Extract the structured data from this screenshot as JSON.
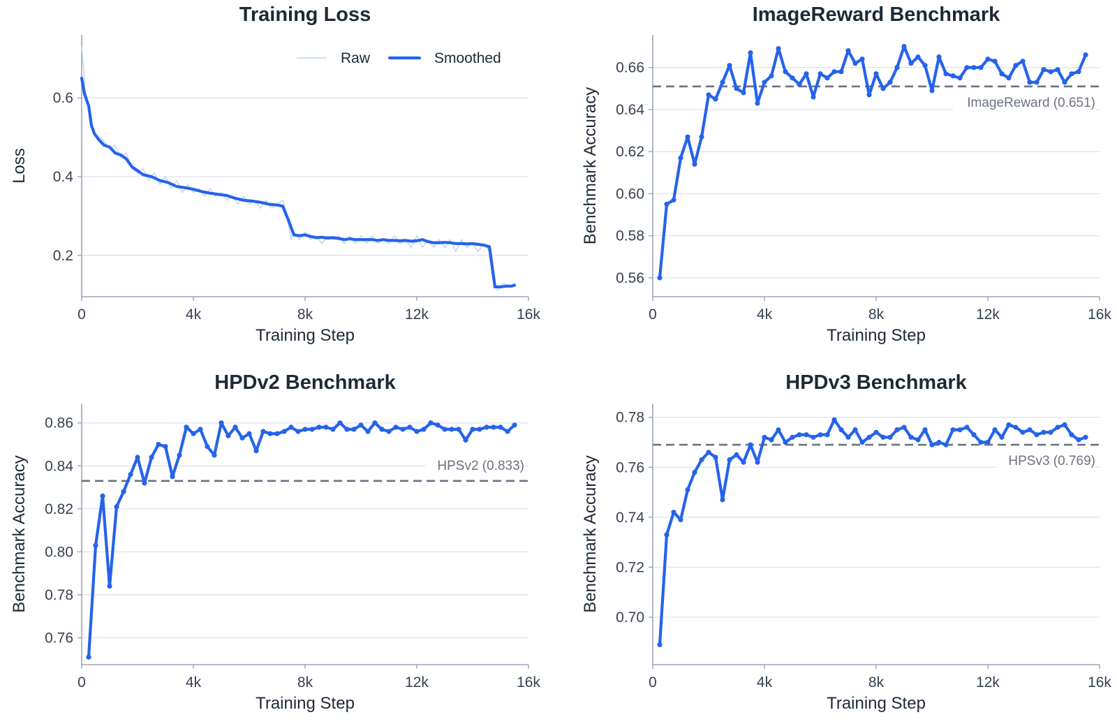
{
  "colors": {
    "series": "#2563eb",
    "raw": "#bcd3f5",
    "grid": "#dfe3ee",
    "axis": "#9aa6b6",
    "reference": "#6b7280"
  },
  "chart_data": [
    {
      "type": "line",
      "title": "Training Loss",
      "xlabel": "Training Step",
      "ylabel": "Loss",
      "xlim": [
        0,
        16000
      ],
      "ylim": [
        0.095,
        0.76
      ],
      "xticks": [
        0,
        4000,
        8000,
        12000,
        16000
      ],
      "xtick_labels": [
        "0",
        "4k",
        "8k",
        "12k",
        "16k"
      ],
      "yticks": [
        0.2,
        0.4,
        0.6
      ],
      "ytick_labels": [
        "0.2",
        "0.4",
        "0.6"
      ],
      "grid": "horizontal",
      "legend": {
        "placement": "top-right",
        "entries": [
          "Raw",
          "Smoothed"
        ]
      },
      "series": [
        {
          "name": "Smoothed",
          "x": [
            0,
            100,
            250,
            350,
            450,
            600,
            800,
            1000,
            1200,
            1400,
            1600,
            1800,
            2000,
            2200,
            2500,
            2800,
            3100,
            3400,
            3700,
            4000,
            4300,
            4600,
            4900,
            5200,
            5500,
            5800,
            6100,
            6400,
            6700,
            7000,
            7200,
            7400,
            7600,
            7800,
            8000,
            8200,
            8400,
            8600,
            8800,
            9000,
            9200,
            9400,
            9600,
            9800,
            10000,
            10200,
            10400,
            10600,
            10800,
            11000,
            11200,
            11400,
            11600,
            11800,
            12000,
            12200,
            12400,
            12600,
            12800,
            13000,
            13200,
            13400,
            13600,
            13800,
            14000,
            14200,
            14400,
            14600,
            14800,
            15000,
            15200,
            15400,
            15500
          ],
          "values": [
            0.65,
            0.61,
            0.58,
            0.53,
            0.51,
            0.495,
            0.48,
            0.475,
            0.46,
            0.455,
            0.445,
            0.425,
            0.415,
            0.405,
            0.4,
            0.39,
            0.385,
            0.375,
            0.372,
            0.368,
            0.362,
            0.358,
            0.355,
            0.352,
            0.345,
            0.34,
            0.338,
            0.335,
            0.33,
            0.328,
            0.325,
            0.29,
            0.252,
            0.25,
            0.252,
            0.248,
            0.245,
            0.246,
            0.244,
            0.245,
            0.243,
            0.24,
            0.242,
            0.24,
            0.24,
            0.24,
            0.24,
            0.238,
            0.24,
            0.238,
            0.238,
            0.237,
            0.238,
            0.236,
            0.237,
            0.24,
            0.235,
            0.232,
            0.232,
            0.233,
            0.232,
            0.23,
            0.23,
            0.229,
            0.23,
            0.228,
            0.226,
            0.222,
            0.12,
            0.12,
            0.122,
            0.122,
            0.124
          ]
        },
        {
          "name": "Raw",
          "x": [
            0,
            60,
            120,
            200,
            280,
            380,
            500,
            650,
            800,
            1000,
            1200,
            1400,
            1600,
            1800,
            2000,
            2200,
            2400,
            2600,
            2800,
            3000,
            3200,
            3400,
            3600,
            3800,
            4000,
            4200,
            4400,
            4600,
            4800,
            5000,
            5200,
            5400,
            5600,
            5800,
            6000,
            6200,
            6400,
            6600,
            6800,
            7000,
            7200,
            7350,
            7500,
            7600,
            7800,
            8000,
            8200,
            8400,
            8600,
            8800,
            9000,
            9200,
            9400,
            9600,
            9800,
            10000,
            10200,
            10400,
            10600,
            10800,
            11000,
            11200,
            11400,
            11600,
            11800,
            12000,
            12200,
            12400,
            12600,
            12800,
            13000,
            13200,
            13400,
            13600,
            13800,
            14000,
            14200,
            14400,
            14600,
            14750,
            14900,
            15100,
            15300,
            15500
          ],
          "values": [
            0.73,
            0.68,
            0.62,
            0.6,
            0.55,
            0.53,
            0.5,
            0.5,
            0.49,
            0.47,
            0.48,
            0.45,
            0.46,
            0.42,
            0.41,
            0.42,
            0.39,
            0.41,
            0.38,
            0.4,
            0.37,
            0.39,
            0.36,
            0.38,
            0.36,
            0.37,
            0.35,
            0.37,
            0.35,
            0.36,
            0.34,
            0.35,
            0.33,
            0.35,
            0.33,
            0.34,
            0.32,
            0.34,
            0.32,
            0.33,
            0.34,
            0.3,
            0.24,
            0.26,
            0.24,
            0.26,
            0.24,
            0.25,
            0.23,
            0.25,
            0.24,
            0.25,
            0.23,
            0.25,
            0.23,
            0.25,
            0.23,
            0.25,
            0.23,
            0.24,
            0.23,
            0.25,
            0.23,
            0.24,
            0.22,
            0.25,
            0.22,
            0.24,
            0.22,
            0.24,
            0.22,
            0.24,
            0.21,
            0.24,
            0.22,
            0.23,
            0.21,
            0.23,
            0.21,
            0.13,
            0.11,
            0.13,
            0.12,
            0.13
          ]
        }
      ]
    },
    {
      "type": "line",
      "title": "ImageReward Benchmark",
      "xlabel": "Training Step",
      "ylabel": "Benchmark Accuracy",
      "xlim": [
        0,
        16000
      ],
      "ylim": [
        0.551,
        0.6755
      ],
      "xticks": [
        0,
        4000,
        8000,
        12000,
        16000
      ],
      "xtick_labels": [
        "0",
        "4k",
        "8k",
        "12k",
        "16k"
      ],
      "yticks": [
        0.56,
        0.58,
        0.6,
        0.62,
        0.64,
        0.66
      ],
      "ytick_labels": [
        "0.56",
        "0.58",
        "0.60",
        "0.62",
        "0.64",
        "0.66"
      ],
      "grid": "horizontal",
      "reference": {
        "label": "ImageReward (0.651)",
        "value": 0.651
      },
      "series": [
        {
          "x": [
            250,
            500,
            750,
            1000,
            1250,
            1500,
            1750,
            2000,
            2250,
            2500,
            2750,
            3000,
            3250,
            3500,
            3750,
            4000,
            4250,
            4500,
            4750,
            5000,
            5250,
            5500,
            5750,
            6000,
            6250,
            6500,
            6750,
            7000,
            7250,
            7500,
            7750,
            8000,
            8250,
            8500,
            8750,
            9000,
            9250,
            9500,
            9750,
            10000,
            10250,
            10500,
            10750,
            11000,
            11250,
            11500,
            11750,
            12000,
            12250,
            12500,
            12750,
            13000,
            13250,
            13500,
            13750,
            14000,
            14250,
            14500,
            14750,
            15000,
            15250,
            15500
          ],
          "values": [
            0.56,
            0.595,
            0.597,
            0.617,
            0.627,
            0.614,
            0.627,
            0.647,
            0.645,
            0.653,
            0.661,
            0.65,
            0.648,
            0.667,
            0.643,
            0.653,
            0.656,
            0.669,
            0.658,
            0.655,
            0.652,
            0.657,
            0.646,
            0.657,
            0.655,
            0.658,
            0.658,
            0.668,
            0.662,
            0.664,
            0.647,
            0.657,
            0.65,
            0.653,
            0.66,
            0.67,
            0.662,
            0.665,
            0.661,
            0.649,
            0.665,
            0.657,
            0.656,
            0.655,
            0.66,
            0.66,
            0.66,
            0.664,
            0.663,
            0.657,
            0.655,
            0.661,
            0.663,
            0.653,
            0.653,
            0.659,
            0.658,
            0.659,
            0.653,
            0.657,
            0.658,
            0.666
          ]
        }
      ]
    },
    {
      "type": "line",
      "title": "HPDv2 Benchmark",
      "xlabel": "Training Step",
      "ylabel": "Benchmark Accuracy",
      "xlim": [
        0,
        16000
      ],
      "ylim": [
        0.7475,
        0.869
      ],
      "xticks": [
        0,
        4000,
        8000,
        12000,
        16000
      ],
      "xtick_labels": [
        "0",
        "4k",
        "8k",
        "12k",
        "16k"
      ],
      "yticks": [
        0.76,
        0.78,
        0.8,
        0.82,
        0.84,
        0.86
      ],
      "ytick_labels": [
        "0.76",
        "0.78",
        "0.80",
        "0.82",
        "0.84",
        "0.86"
      ],
      "grid": "horizontal",
      "reference": {
        "label": "HPSv2 (0.833)",
        "value": 0.833
      },
      "series": [
        {
          "x": [
            250,
            500,
            750,
            1000,
            1250,
            1500,
            1750,
            2000,
            2250,
            2500,
            2750,
            3000,
            3250,
            3500,
            3750,
            4000,
            4250,
            4500,
            4750,
            5000,
            5250,
            5500,
            5750,
            6000,
            6250,
            6500,
            6750,
            7000,
            7250,
            7500,
            7750,
            8000,
            8250,
            8500,
            8750,
            9000,
            9250,
            9500,
            9750,
            10000,
            10250,
            10500,
            10750,
            11000,
            11250,
            11500,
            11750,
            12000,
            12250,
            12500,
            12750,
            13000,
            13250,
            13500,
            13750,
            14000,
            14250,
            14500,
            14750,
            15000,
            15250,
            15500
          ],
          "values": [
            0.751,
            0.803,
            0.826,
            0.784,
            0.821,
            0.828,
            0.836,
            0.844,
            0.832,
            0.844,
            0.85,
            0.849,
            0.835,
            0.845,
            0.858,
            0.855,
            0.857,
            0.849,
            0.845,
            0.86,
            0.854,
            0.858,
            0.853,
            0.855,
            0.847,
            0.856,
            0.855,
            0.855,
            0.856,
            0.858,
            0.856,
            0.857,
            0.857,
            0.858,
            0.858,
            0.857,
            0.86,
            0.857,
            0.857,
            0.859,
            0.856,
            0.86,
            0.857,
            0.856,
            0.858,
            0.857,
            0.858,
            0.856,
            0.857,
            0.86,
            0.859,
            0.857,
            0.857,
            0.857,
            0.852,
            0.857,
            0.857,
            0.858,
            0.858,
            0.858,
            0.856,
            0.859
          ]
        }
      ]
    },
    {
      "type": "line",
      "title": "HPDv3 Benchmark",
      "xlabel": "Training Step",
      "ylabel": "Benchmark Accuracy",
      "xlim": [
        0,
        16000
      ],
      "ylim": [
        0.681,
        0.7855
      ],
      "xticks": [
        0,
        4000,
        8000,
        12000,
        16000
      ],
      "xtick_labels": [
        "0",
        "4k",
        "8k",
        "12k",
        "16k"
      ],
      "yticks": [
        0.7,
        0.72,
        0.74,
        0.76,
        0.78
      ],
      "ytick_labels": [
        "0.70",
        "0.72",
        "0.74",
        "0.76",
        "0.78"
      ],
      "grid": "horizontal",
      "reference": {
        "label": "HPSv3 (0.769)",
        "value": 0.769
      },
      "series": [
        {
          "x": [
            250,
            500,
            750,
            1000,
            1250,
            1500,
            1750,
            2000,
            2250,
            2500,
            2750,
            3000,
            3250,
            3500,
            3750,
            4000,
            4250,
            4500,
            4750,
            5000,
            5250,
            5500,
            5750,
            6000,
            6250,
            6500,
            6750,
            7000,
            7250,
            7500,
            7750,
            8000,
            8250,
            8500,
            8750,
            9000,
            9250,
            9500,
            9750,
            10000,
            10250,
            10500,
            10750,
            11000,
            11250,
            11500,
            11750,
            12000,
            12250,
            12500,
            12750,
            13000,
            13250,
            13500,
            13750,
            14000,
            14250,
            14500,
            14750,
            15000,
            15250,
            15500
          ],
          "values": [
            0.689,
            0.733,
            0.742,
            0.739,
            0.751,
            0.758,
            0.763,
            0.766,
            0.764,
            0.747,
            0.763,
            0.765,
            0.762,
            0.769,
            0.762,
            0.772,
            0.771,
            0.775,
            0.77,
            0.772,
            0.773,
            0.773,
            0.772,
            0.773,
            0.773,
            0.779,
            0.775,
            0.772,
            0.775,
            0.77,
            0.772,
            0.774,
            0.772,
            0.772,
            0.775,
            0.776,
            0.772,
            0.771,
            0.775,
            0.769,
            0.77,
            0.769,
            0.775,
            0.775,
            0.776,
            0.773,
            0.77,
            0.77,
            0.775,
            0.772,
            0.777,
            0.776,
            0.774,
            0.775,
            0.773,
            0.774,
            0.774,
            0.776,
            0.777,
            0.773,
            0.771,
            0.772
          ]
        }
      ]
    }
  ]
}
